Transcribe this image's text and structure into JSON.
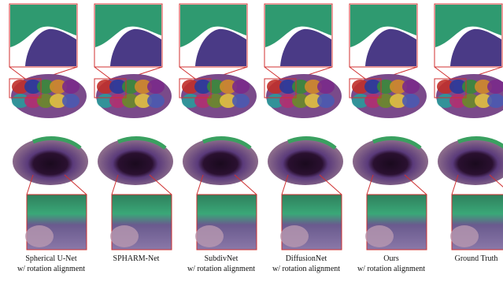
{
  "columns": [
    {
      "lines": [
        "Spherical U-Net",
        "w/ rotation alignment"
      ]
    },
    {
      "lines": [
        "SPHARM-Net"
      ]
    },
    {
      "lines": [
        "SubdivNet",
        "w/ rotation alignment"
      ]
    },
    {
      "lines": [
        "DiffusionNet",
        "w/ rotation alignment"
      ]
    },
    {
      "lines": [
        "Ours",
        "w/ rotation alignment"
      ]
    },
    {
      "lines": [
        "Ground Truth"
      ]
    }
  ]
}
